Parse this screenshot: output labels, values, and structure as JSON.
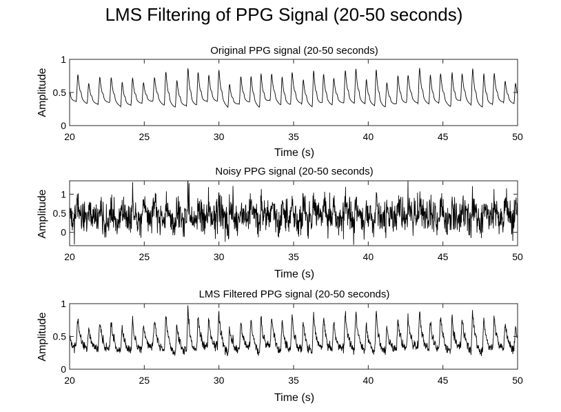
{
  "figure_title": "LMS Filtering of PPG Signal (20-50 seconds)",
  "chart_data": [
    {
      "type": "line",
      "title": "Original PPG signal (20-50 seconds)",
      "xlabel": "Time (s)",
      "ylabel": "Amplitude",
      "xlim": [
        20,
        50
      ],
      "ylim": [
        0,
        1
      ],
      "xticks": [
        "20",
        "25",
        "30",
        "35",
        "40",
        "45",
        "50"
      ],
      "yticks": [
        "0",
        "0.5",
        "1"
      ],
      "grid": false,
      "series_color": "#000000",
      "signal": {
        "beat_period_s": 0.72,
        "baseline": 0.32,
        "peak_amplitude_range": [
          0.62,
          0.88
        ],
        "noise_std": 0.0,
        "seed": 11
      }
    },
    {
      "type": "line",
      "title": "Noisy PPG signal (20-50 seconds)",
      "xlabel": "Time (s)",
      "ylabel": "Amplitude",
      "xlim": [
        20,
        50
      ],
      "ylim": [
        -0.35,
        1.35
      ],
      "xticks": [
        "20",
        "25",
        "30",
        "35",
        "40",
        "45",
        "50"
      ],
      "yticks": [
        "0",
        "0.5",
        "1"
      ],
      "grid": false,
      "series_color": "#000000",
      "signal": {
        "beat_period_s": 0.72,
        "baseline": 0.32,
        "peak_amplitude_range": [
          0.62,
          0.88
        ],
        "noise_std": 0.22,
        "seed": 11
      }
    },
    {
      "type": "line",
      "title": "LMS Filtered PPG signal (20-50 seconds)",
      "xlabel": "Time (s)",
      "ylabel": "Amplitude",
      "xlim": [
        20,
        50
      ],
      "ylim": [
        0,
        1
      ],
      "xticks": [
        "20",
        "25",
        "30",
        "35",
        "40",
        "45",
        "50"
      ],
      "yticks": [
        "0",
        "0.5",
        "1"
      ],
      "grid": false,
      "series_color": "#000000",
      "signal": {
        "beat_period_s": 0.72,
        "baseline": 0.3,
        "peak_amplitude_range": [
          0.6,
          0.9
        ],
        "noise_std": 0.035,
        "seed": 11
      }
    }
  ]
}
